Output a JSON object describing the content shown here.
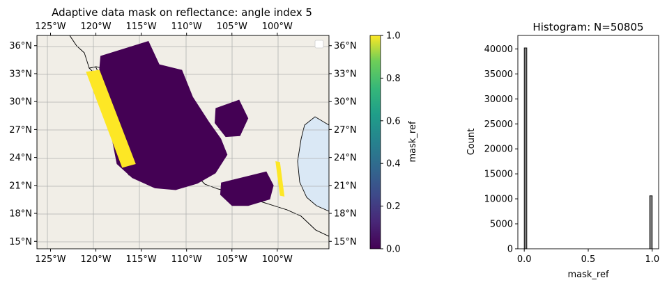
{
  "chart_data": [
    {
      "type": "heatmap",
      "title": "Adaptive data mask on reflectance: angle index 5",
      "projection": "map",
      "x_ticks": [
        "125°W",
        "120°W",
        "115°W",
        "110°W",
        "105°W",
        "100°W"
      ],
      "x_tick_values": [
        -125,
        -120,
        -115,
        -110,
        -105,
        -100
      ],
      "y_ticks": [
        "15°N",
        "18°N",
        "21°N",
        "24°N",
        "27°N",
        "30°N",
        "33°N",
        "36°N"
      ],
      "y_tick_values": [
        15,
        18,
        21,
        24,
        27,
        30,
        33,
        36
      ],
      "xlim": [
        -126.5,
        -94.3
      ],
      "ylim": [
        14.2,
        37.1
      ],
      "grid": true,
      "legend": "top-right (empty)",
      "colormap": "viridis",
      "colors": {
        "ocean": "#dae8f5",
        "land": "#f1eee7",
        "mask_0": "#440154",
        "mask_1": "#fde725",
        "gridline": "#b0b0b0"
      },
      "colorbar": {
        "label": "mask_ref",
        "ticks": [
          "0.0",
          "0.2",
          "0.4",
          "0.6",
          "0.8",
          "1.0"
        ],
        "tick_values": [
          0.0,
          0.2,
          0.4,
          0.6,
          0.8,
          1.0
        ],
        "range": [
          0.0,
          1.0
        ]
      },
      "mask_regions": [
        {
          "value": 0,
          "points": [
            [
              -119.5,
              34.9
            ],
            [
              -114.2,
              36.5
            ],
            [
              -113,
              34
            ],
            [
              -110.5,
              33.4
            ],
            [
              -109.3,
              30.5
            ],
            [
              -107.5,
              27.8
            ],
            [
              -106.2,
              26
            ],
            [
              -105.5,
              24.3
            ],
            [
              -106.8,
              22.3
            ],
            [
              -108.8,
              21.2
            ],
            [
              -111.2,
              20.5
            ],
            [
              -113.5,
              20.7
            ],
            [
              -116,
              21.8
            ],
            [
              -117.7,
              23.3
            ],
            [
              -118.3,
              26.3
            ],
            [
              -119.8,
              31.5
            ]
          ]
        },
        {
          "value": 0,
          "points": [
            [
              -106.8,
              29.3
            ],
            [
              -104.2,
              30.2
            ],
            [
              -103.2,
              28.2
            ],
            [
              -104.1,
              26.3
            ],
            [
              -105.7,
              26.2
            ],
            [
              -106.9,
              27.7
            ]
          ]
        },
        {
          "value": 0,
          "points": [
            [
              -106.2,
              21.3
            ],
            [
              -101.2,
              22.5
            ],
            [
              -100.4,
              21
            ],
            [
              -100.8,
              19.5
            ],
            [
              -103.2,
              18.8
            ],
            [
              -105,
              18.8
            ],
            [
              -106.3,
              20
            ]
          ]
        },
        {
          "value": 1,
          "points": [
            [
              -121.1,
              33.2
            ],
            [
              -119.6,
              33.4
            ],
            [
              -115.6,
              23.3
            ],
            [
              -117.1,
              22.9
            ]
          ]
        },
        {
          "value": 1,
          "points": [
            [
              -100.2,
              23.6
            ],
            [
              -99.7,
              23.5
            ],
            [
              -99.2,
              19.8
            ],
            [
              -99.7,
              19.9
            ]
          ]
        }
      ]
    },
    {
      "type": "bar",
      "title": "Histogram: N=50805",
      "xlabel": "mask_ref",
      "ylabel": "Count",
      "x_ticks": [
        "0.0",
        "0.5",
        "1.0"
      ],
      "x_tick_values": [
        0.0,
        0.5,
        1.0
      ],
      "y_ticks": [
        "0",
        "5000",
        "10000",
        "15000",
        "20000",
        "25000",
        "30000",
        "35000",
        "40000"
      ],
      "y_tick_values": [
        0,
        5000,
        10000,
        15000,
        20000,
        25000,
        30000,
        35000,
        40000
      ],
      "xlim": [
        -0.05,
        1.05
      ],
      "ylim": [
        0,
        42700
      ],
      "bins": [
        {
          "x_start": 0.0,
          "x_end": 0.02,
          "value": 40200
        },
        {
          "x_start": 0.98,
          "x_end": 1.0,
          "value": 10600
        }
      ],
      "bar_color": "#808080"
    }
  ]
}
